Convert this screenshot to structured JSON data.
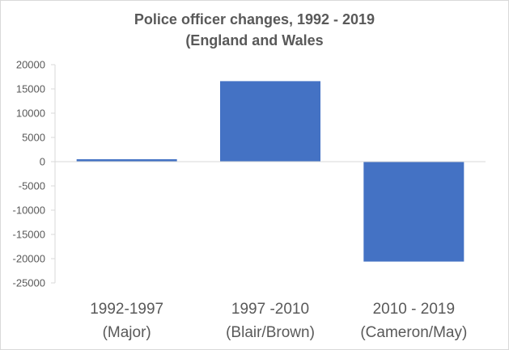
{
  "chart_data": {
    "type": "bar",
    "title_line1": "Police officer changes, 1992 - 2019",
    "title_line2": "(England and Wales",
    "categories": [
      [
        "1992-1997",
        "(Major)"
      ],
      [
        "1997 -2010",
        "(Blair/Brown)"
      ],
      [
        "2010 - 2019",
        "(Cameron/May)"
      ]
    ],
    "values": [
      500,
      16600,
      -20600
    ],
    "ylim": [
      -25000,
      20000
    ],
    "yticks": [
      20000,
      15000,
      10000,
      5000,
      0,
      -5000,
      -10000,
      -15000,
      -20000,
      -25000
    ],
    "grid": false,
    "bar_color": "#4472C4",
    "axis_color": "#d9d9d9"
  }
}
